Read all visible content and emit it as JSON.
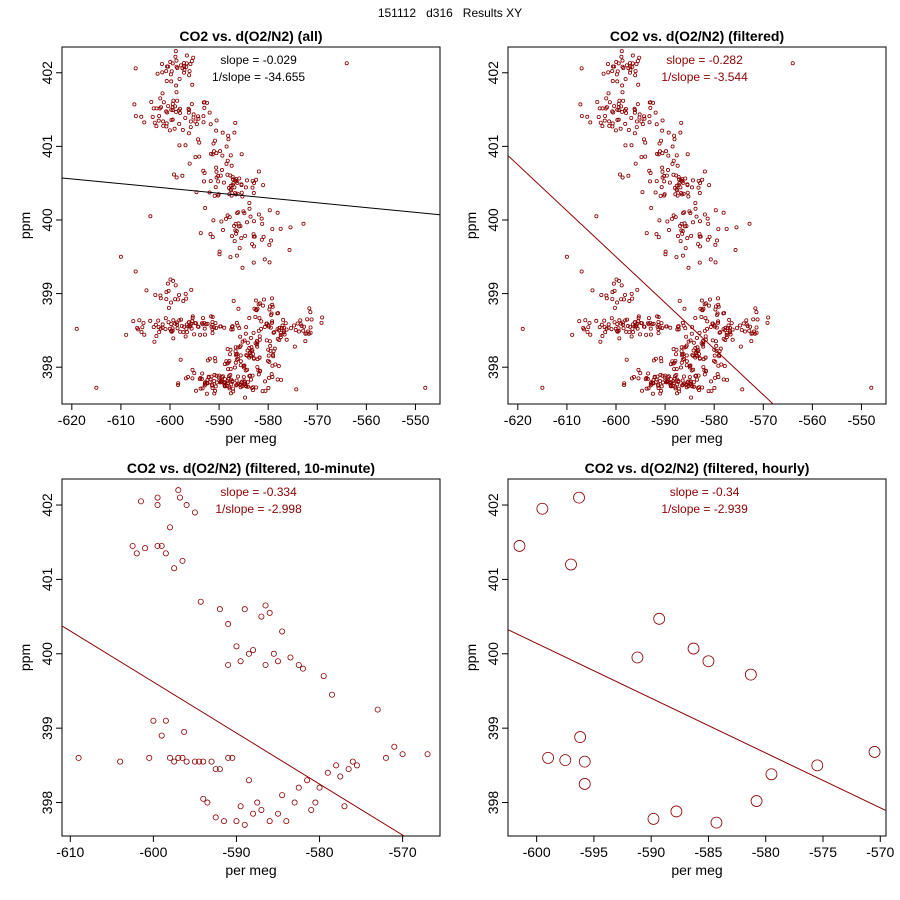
{
  "page_title": "151112   d316   Results XY",
  "colors": {
    "points": "#8b0000",
    "fit_all": "#000000",
    "fit_filtered": "#8b0000",
    "axes": "#000000"
  },
  "chart_data": [
    {
      "type": "scatter",
      "title": "CO2 vs. d(O2/N2) (all)",
      "xlabel": "per meg",
      "ylabel": "ppm",
      "xlim": [
        -622,
        -545
      ],
      "ylim": [
        397.5,
        402.35
      ],
      "xticks": [
        -620,
        -610,
        -600,
        -590,
        -580,
        -570,
        -560,
        -550
      ],
      "yticks": [
        398,
        399,
        400,
        401,
        402
      ],
      "annotation": {
        "slope_text": "slope = -0.029",
        "inv_slope_text": "1/slope = -34.655",
        "color": "#000000"
      },
      "fit_line": {
        "slope": -0.00648,
        "intercept": 396.54,
        "color": "#000000"
      },
      "points_density": "dense",
      "point_radius": 1.6,
      "clusters": [
        {
          "x_mean": -598,
          "x_sd": 2.2,
          "y_mean": 402.05,
          "y_sd": 0.12,
          "n": 35
        },
        {
          "x_mean": -599,
          "x_sd": 4.0,
          "y_mean": 401.42,
          "y_sd": 0.12,
          "n": 60
        },
        {
          "x_mean": -592,
          "x_sd": 3.5,
          "y_mean": 400.95,
          "y_sd": 0.25,
          "n": 40
        },
        {
          "x_mean": -587,
          "x_sd": 3.5,
          "y_mean": 400.48,
          "y_sd": 0.12,
          "n": 45
        },
        {
          "x_mean": -586,
          "x_sd": 3.8,
          "y_mean": 399.95,
          "y_sd": 0.18,
          "n": 45
        },
        {
          "x_mean": -582,
          "x_sd": 4.5,
          "y_mean": 399.6,
          "y_sd": 0.2,
          "n": 15
        },
        {
          "x_mean": -599,
          "x_sd": 2.0,
          "y_mean": 399.02,
          "y_sd": 0.1,
          "n": 20
        },
        {
          "x_mean": -597,
          "x_sd": 6.0,
          "y_mean": 398.55,
          "y_sd": 0.06,
          "n": 90
        },
        {
          "x_mean": -577,
          "x_sd": 5.0,
          "y_mean": 398.52,
          "y_sd": 0.1,
          "n": 60
        },
        {
          "x_mean": -583,
          "x_sd": 3.5,
          "y_mean": 398.2,
          "y_sd": 0.12,
          "n": 55
        },
        {
          "x_mean": -585,
          "x_sd": 4.5,
          "y_mean": 397.95,
          "y_sd": 0.15,
          "n": 70
        },
        {
          "x_mean": -590,
          "x_sd": 4.0,
          "y_mean": 397.78,
          "y_sd": 0.06,
          "n": 70
        },
        {
          "x_mean": -581,
          "x_sd": 5.5,
          "y_mean": 398.8,
          "y_sd": 0.12,
          "n": 20
        }
      ],
      "outliers": [
        [
          -615,
          397.72
        ],
        [
          -548,
          397.72
        ],
        [
          -619,
          398.52
        ],
        [
          -564,
          402.13
        ],
        [
          -607,
          402.06
        ],
        [
          -610,
          399.5
        ],
        [
          -604,
          400.05
        ],
        [
          -607,
          399.3
        ]
      ]
    },
    {
      "type": "scatter",
      "title": "CO2 vs. d(O2/N2) (filtered)",
      "xlabel": "per meg",
      "ylabel": "ppm",
      "xlim": [
        -622,
        -545
      ],
      "ylim": [
        397.5,
        402.35
      ],
      "xticks": [
        -620,
        -610,
        -600,
        -590,
        -580,
        -570,
        -560,
        -550
      ],
      "yticks": [
        398,
        399,
        400,
        401,
        402
      ],
      "annotation": {
        "slope_text": "slope = -0.282",
        "inv_slope_text": "1/slope = -3.544",
        "color": "#8b0000"
      },
      "fit_line": {
        "slope": -0.0625,
        "intercept": 362.0,
        "color": "#8b0000"
      },
      "points_density": "dense",
      "point_radius": 1.6,
      "clusters": [
        {
          "x_mean": -598,
          "x_sd": 2.2,
          "y_mean": 402.05,
          "y_sd": 0.12,
          "n": 35
        },
        {
          "x_mean": -599,
          "x_sd": 4.0,
          "y_mean": 401.42,
          "y_sd": 0.12,
          "n": 60
        },
        {
          "x_mean": -592,
          "x_sd": 3.5,
          "y_mean": 400.95,
          "y_sd": 0.25,
          "n": 40
        },
        {
          "x_mean": -587,
          "x_sd": 3.5,
          "y_mean": 400.48,
          "y_sd": 0.12,
          "n": 45
        },
        {
          "x_mean": -586,
          "x_sd": 3.8,
          "y_mean": 399.95,
          "y_sd": 0.18,
          "n": 45
        },
        {
          "x_mean": -582,
          "x_sd": 4.5,
          "y_mean": 399.6,
          "y_sd": 0.2,
          "n": 15
        },
        {
          "x_mean": -599,
          "x_sd": 2.0,
          "y_mean": 399.02,
          "y_sd": 0.1,
          "n": 20
        },
        {
          "x_mean": -597,
          "x_sd": 6.0,
          "y_mean": 398.55,
          "y_sd": 0.06,
          "n": 90
        },
        {
          "x_mean": -577,
          "x_sd": 5.0,
          "y_mean": 398.52,
          "y_sd": 0.1,
          "n": 60
        },
        {
          "x_mean": -583,
          "x_sd": 3.5,
          "y_mean": 398.2,
          "y_sd": 0.12,
          "n": 55
        },
        {
          "x_mean": -585,
          "x_sd": 4.5,
          "y_mean": 397.95,
          "y_sd": 0.15,
          "n": 70
        },
        {
          "x_mean": -590,
          "x_sd": 4.0,
          "y_mean": 397.78,
          "y_sd": 0.06,
          "n": 70
        },
        {
          "x_mean": -581,
          "x_sd": 5.5,
          "y_mean": 398.8,
          "y_sd": 0.12,
          "n": 20
        }
      ],
      "outliers": [
        [
          -615,
          397.72
        ],
        [
          -548,
          397.72
        ],
        [
          -619,
          398.52
        ],
        [
          -564,
          402.13
        ],
        [
          -607,
          402.06
        ],
        [
          -610,
          399.5
        ],
        [
          -604,
          400.05
        ],
        [
          -607,
          399.3
        ]
      ]
    },
    {
      "type": "scatter",
      "title": "CO2 vs. d(O2/N2) (filtered, 10-minute)",
      "xlabel": "per meg",
      "ylabel": "ppm",
      "xlim": [
        -611,
        -565.5
      ],
      "ylim": [
        397.55,
        402.35
      ],
      "xticks": [
        -610,
        -600,
        -590,
        -580,
        -570
      ],
      "yticks": [
        398,
        399,
        400,
        401,
        402
      ],
      "annotation": {
        "slope_text": "slope = -0.334",
        "inv_slope_text": "1/slope = -2.998",
        "color": "#8b0000"
      },
      "fit_line": {
        "slope": -0.0686,
        "intercept": 358.46,
        "color": "#8b0000"
      },
      "point_radius": 2.6,
      "points": [
        [
          -609,
          398.6
        ],
        [
          -604,
          398.55
        ],
        [
          -602.5,
          401.45
        ],
        [
          -602,
          401.35
        ],
        [
          -601.5,
          402.05
        ],
        [
          -601,
          401.42
        ],
        [
          -600.5,
          398.6
        ],
        [
          -600,
          399.1
        ],
        [
          -599.5,
          401.45
        ],
        [
          -599.5,
          402.1
        ],
        [
          -599.5,
          402.0
        ],
        [
          -599,
          401.45
        ],
        [
          -599,
          398.9
        ],
        [
          -598.5,
          401.35
        ],
        [
          -598.5,
          399.1
        ],
        [
          -598,
          401.7
        ],
        [
          -598,
          398.6
        ],
        [
          -597.5,
          401.15
        ],
        [
          -597.5,
          398.55
        ],
        [
          -597,
          402.2
        ],
        [
          -597,
          398.6
        ],
        [
          -596.8,
          402.1
        ],
        [
          -596.5,
          401.25
        ],
        [
          -596.5,
          398.6
        ],
        [
          -596.3,
          398.95
        ],
        [
          -596,
          402.0
        ],
        [
          -596,
          398.55
        ],
        [
          -595,
          401.9
        ],
        [
          -595,
          398.55
        ],
        [
          -594.5,
          398.55
        ],
        [
          -594.3,
          400.7
        ],
        [
          -594,
          398.55
        ],
        [
          -594,
          398.05
        ],
        [
          -593.5,
          398.0
        ],
        [
          -593,
          398.55
        ],
        [
          -592.5,
          398.45
        ],
        [
          -592.5,
          397.8
        ],
        [
          -592,
          400.6
        ],
        [
          -592,
          398.45
        ],
        [
          -591.5,
          397.75
        ],
        [
          -591,
          400.4
        ],
        [
          -591,
          398.6
        ],
        [
          -591,
          399.85
        ],
        [
          -590.5,
          398.6
        ],
        [
          -590,
          397.75
        ],
        [
          -590,
          400.1
        ],
        [
          -589.5,
          397.95
        ],
        [
          -589.5,
          399.9
        ],
        [
          -589,
          400.6
        ],
        [
          -589,
          397.7
        ],
        [
          -588.5,
          400.0
        ],
        [
          -588.5,
          398.3
        ],
        [
          -588,
          400.05
        ],
        [
          -588,
          397.85
        ],
        [
          -587.5,
          398.0
        ],
        [
          -587,
          400.5
        ],
        [
          -587,
          397.9
        ],
        [
          -586.5,
          400.65
        ],
        [
          -586.5,
          399.85
        ],
        [
          -586,
          400.55
        ],
        [
          -586,
          397.75
        ],
        [
          -585.5,
          400.0
        ],
        [
          -585,
          399.9
        ],
        [
          -585,
          397.85
        ],
        [
          -584.5,
          398.1
        ],
        [
          -584.5,
          400.3
        ],
        [
          -584,
          397.75
        ],
        [
          -583.5,
          399.95
        ],
        [
          -583,
          398.0
        ],
        [
          -582.5,
          398.2
        ],
        [
          -582.5,
          399.85
        ],
        [
          -582,
          399.8
        ],
        [
          -581.5,
          398.3
        ],
        [
          -581,
          397.9
        ],
        [
          -580.5,
          398.0
        ],
        [
          -580,
          398.2
        ],
        [
          -579.5,
          399.7
        ],
        [
          -579,
          398.4
        ],
        [
          -578.5,
          399.45
        ],
        [
          -578,
          398.5
        ],
        [
          -577.5,
          398.35
        ],
        [
          -577,
          397.95
        ],
        [
          -576.5,
          398.45
        ],
        [
          -576,
          398.55
        ],
        [
          -575.5,
          398.5
        ],
        [
          -573,
          399.25
        ],
        [
          -572,
          398.6
        ],
        [
          -571,
          398.75
        ],
        [
          -570,
          398.65
        ],
        [
          -567,
          398.65
        ]
      ]
    },
    {
      "type": "scatter",
      "title": "CO2 vs. d(O2/N2) (filtered, hourly)",
      "xlabel": "per meg",
      "ylabel": "ppm",
      "xlim": [
        -602.5,
        -569.5
      ],
      "ylim": [
        397.55,
        402.35
      ],
      "xticks": [
        -600,
        -595,
        -590,
        -585,
        -580,
        -575,
        -570
      ],
      "yticks": [
        398,
        399,
        400,
        401,
        402
      ],
      "annotation": {
        "slope_text": "slope = -0.34",
        "inv_slope_text": "1/slope = -2.939",
        "color": "#8b0000"
      },
      "fit_line": {
        "slope": -0.0737,
        "intercept": 355.92,
        "color": "#8b0000"
      },
      "point_radius": 5.5,
      "points": [
        [
          -601.5,
          401.45
        ],
        [
          -599.5,
          401.95
        ],
        [
          -599,
          398.6
        ],
        [
          -597.5,
          398.57
        ],
        [
          -597,
          401.2
        ],
        [
          -596.3,
          402.1
        ],
        [
          -596.2,
          398.88
        ],
        [
          -595.8,
          398.55
        ],
        [
          -595.8,
          398.25
        ],
        [
          -591.2,
          399.95
        ],
        [
          -589.8,
          397.78
        ],
        [
          -589.3,
          400.47
        ],
        [
          -587.8,
          397.88
        ],
        [
          -586.3,
          400.07
        ],
        [
          -585,
          399.9
        ],
        [
          -584.3,
          397.73
        ],
        [
          -581.3,
          399.72
        ],
        [
          -580.8,
          398.02
        ],
        [
          -579.5,
          398.38
        ],
        [
          -575.5,
          398.5
        ],
        [
          -570.5,
          398.68
        ]
      ]
    }
  ]
}
